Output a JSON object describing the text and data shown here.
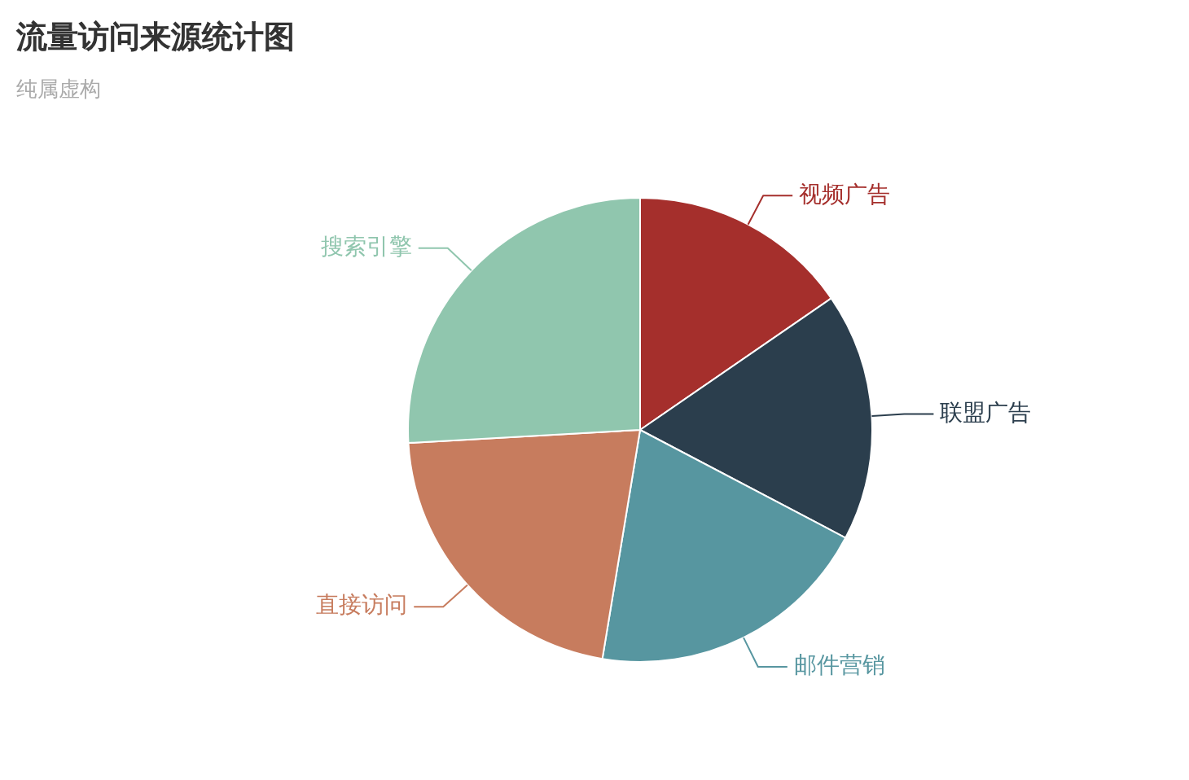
{
  "chart_data": {
    "type": "pie",
    "title": "流量访问来源统计图",
    "subtitle": "纯属虚构",
    "categories": [
      "视频广告",
      "联盟广告",
      "邮件营销",
      "直接访问",
      "搜索引擎"
    ],
    "values": [
      15.4,
      17.3,
      19.9,
      21.5,
      25.9
    ],
    "colors": [
      "#a52f2c",
      "#2b3e4d",
      "#5796a0",
      "#c77c5e",
      "#90c6ae"
    ],
    "legend": false
  }
}
